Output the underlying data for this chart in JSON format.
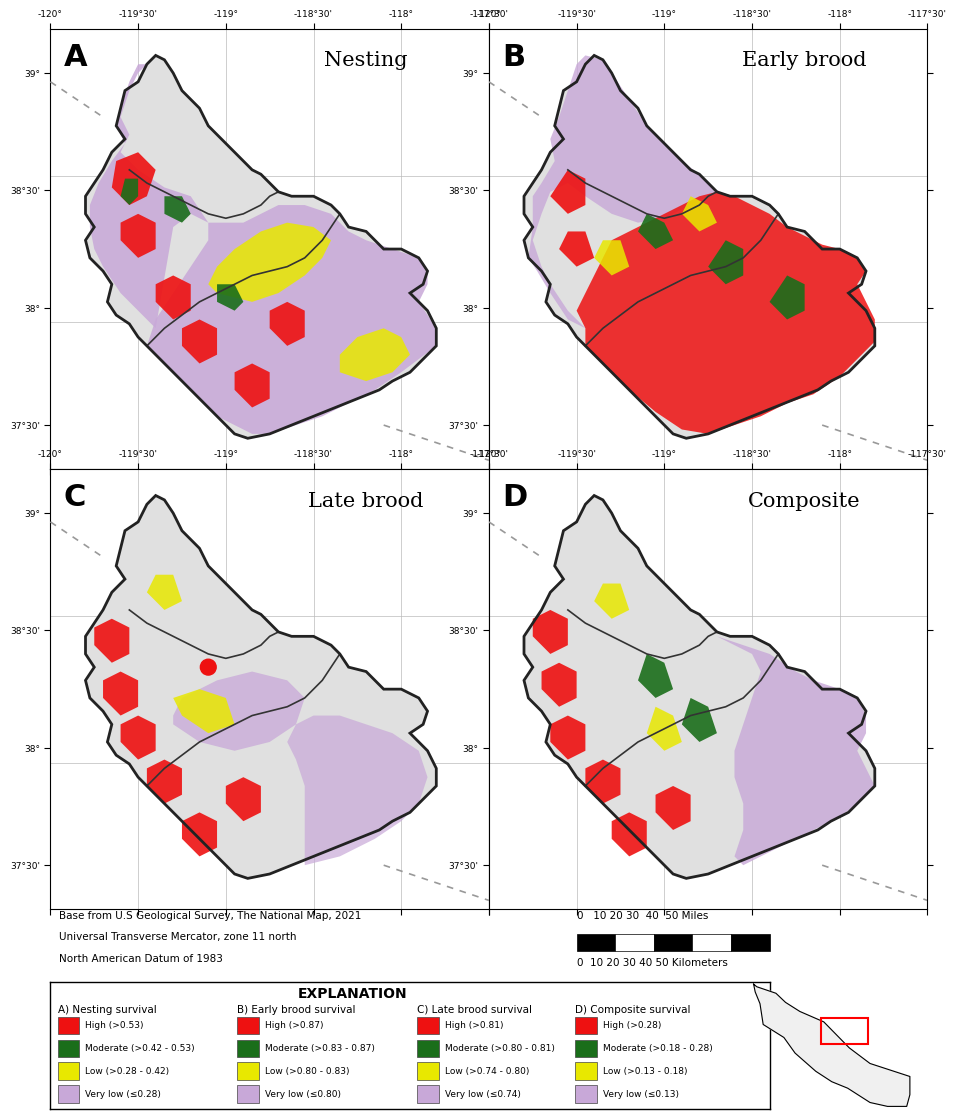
{
  "panel_labels": [
    "A",
    "B",
    "C",
    "D"
  ],
  "panel_titles": [
    "Nesting",
    "Early brood",
    "Late brood",
    "Composite"
  ],
  "x_ticks": [
    "-120°",
    "-119°30'",
    "-119°",
    "-118°30'",
    "-118°",
    "-117°30'"
  ],
  "y_ticks_top": [
    "39°",
    "38°30'",
    "38°",
    "37°30'"
  ],
  "y_ticks_bottom": [
    "39°",
    "38°30'",
    "38°",
    "37°30'"
  ],
  "grid_color": "#bbbbbb",
  "map_bg_white": "#ffffff",
  "map_bg_gray": "#d8d8d8",
  "legend_title": "EXPLANATION",
  "legend_sections": [
    {
      "header": "A) Nesting survival",
      "items": [
        {
          "color": "#ee1111",
          "label": "High (>0.53)"
        },
        {
          "color": "#1a6e1a",
          "label": "Moderate (>0.42 - 0.53)"
        },
        {
          "color": "#e8e800",
          "label": "Low (>0.28 - 0.42)"
        },
        {
          "color": "#c8a8d8",
          "label": "Very low (≤0.28)"
        }
      ]
    },
    {
      "header": "B) Early brood survival",
      "items": [
        {
          "color": "#ee1111",
          "label": "High (>0.87)"
        },
        {
          "color": "#1a6e1a",
          "label": "Moderate (>0.83 - 0.87)"
        },
        {
          "color": "#e8e800",
          "label": "Low (>0.80 - 0.83)"
        },
        {
          "color": "#c8a8d8",
          "label": "Very low (≤0.80)"
        }
      ]
    },
    {
      "header": "C) Late brood survival",
      "items": [
        {
          "color": "#ee1111",
          "label": "High (>0.81)"
        },
        {
          "color": "#1a6e1a",
          "label": "Moderate (>0.80 - 0.81)"
        },
        {
          "color": "#e8e800",
          "label": "Low (>0.74 - 0.80)"
        },
        {
          "color": "#c8a8d8",
          "label": "Very low (≤0.74)"
        }
      ]
    },
    {
      "header": "D) Composite survival",
      "items": [
        {
          "color": "#ee1111",
          "label": "High (>0.28)"
        },
        {
          "color": "#1a6e1a",
          "label": "Moderate (>0.18 - 0.28)"
        },
        {
          "color": "#e8e800",
          "label": "Low (>0.13 - 0.18)"
        },
        {
          "color": "#c8a8d8",
          "label": "Very low (≤0.13)"
        }
      ]
    }
  ],
  "base_text_line1": "Base from U.S Geological Survey, The National Map, 2021",
  "base_text_line2": "Universal Transverse Mercator, zone 11 north",
  "base_text_line3": "North American Datum of 1983",
  "scale_miles": "0   10 20 30  40  50 Miles",
  "scale_km": "0  10 20 30 40 50 Kilometers",
  "background_color": "#ffffff",
  "dashed_line_color": "#999999",
  "relief_color": "#e0e0e0",
  "relief_color2": "#d0d0d0",
  "boundary_color": "#222222",
  "inner_boundary_color": "#333333"
}
